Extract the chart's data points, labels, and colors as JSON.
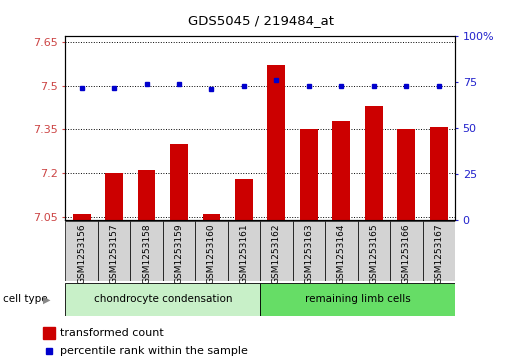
{
  "title": "GDS5045 / 219484_at",
  "samples": [
    "GSM1253156",
    "GSM1253157",
    "GSM1253158",
    "GSM1253159",
    "GSM1253160",
    "GSM1253161",
    "GSM1253162",
    "GSM1253163",
    "GSM1253164",
    "GSM1253165",
    "GSM1253166",
    "GSM1253167"
  ],
  "transformed_count": [
    7.06,
    7.2,
    7.21,
    7.3,
    7.06,
    7.18,
    7.57,
    7.35,
    7.38,
    7.43,
    7.35,
    7.36
  ],
  "percentile_rank": [
    72,
    72,
    74,
    74,
    71,
    73,
    76,
    73,
    73,
    73,
    73,
    73
  ],
  "ylim_left": [
    7.04,
    7.67
  ],
  "ylim_right": [
    0,
    100
  ],
  "yticks_left": [
    7.05,
    7.2,
    7.35,
    7.5,
    7.65
  ],
  "yticks_right": [
    0,
    25,
    50,
    75,
    100
  ],
  "ytick_labels_right": [
    "0",
    "25",
    "50",
    "75",
    "100%"
  ],
  "bar_color": "#CC0000",
  "dot_color": "#0000CC",
  "bar_width": 0.55,
  "cell_type_label": "cell type",
  "legend_bar_label": "transformed count",
  "legend_dot_label": "percentile rank within the sample",
  "left_tick_color": "#CC4444",
  "right_tick_color": "#2222CC",
  "grid_color": "black",
  "bar_bottom": 7.04,
  "group1_label": "chondrocyte condensation",
  "group1_color": "#c8f0c8",
  "group2_label": "remaining limb cells",
  "group2_color": "#66dd66",
  "sample_box_color": "#d3d3d3",
  "n_group1": 6,
  "n_group2": 6
}
